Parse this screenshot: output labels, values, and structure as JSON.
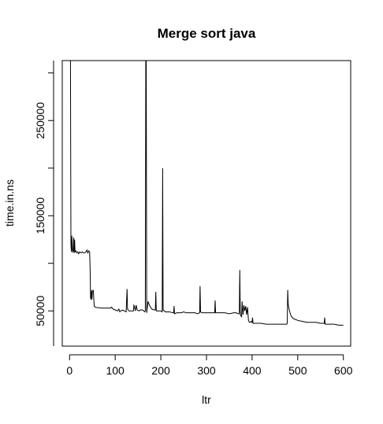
{
  "chart_data": {
    "type": "line",
    "title": "Merge sort java",
    "xlabel": "ltr",
    "ylabel": "time.in.ns",
    "xlim": [
      -16,
      616
    ],
    "ylim": [
      13000,
      313000
    ],
    "xticks": [
      0,
      100,
      200,
      300,
      400,
      500,
      600
    ],
    "yticks": [
      50000,
      150000,
      250000
    ],
    "ytick_labels": [
      "50000",
      "150000",
      "250000"
    ],
    "grid": false,
    "legend": "none",
    "series": [
      {
        "color": "#000000",
        "points": [
          [
            1,
            313000
          ],
          [
            2,
            313000
          ],
          [
            3,
            120000
          ],
          [
            4,
            112000
          ],
          [
            5,
            129000
          ],
          [
            6,
            115000
          ],
          [
            7,
            112000
          ],
          [
            8,
            113000
          ],
          [
            9,
            127000
          ],
          [
            10,
            111000
          ],
          [
            11,
            125000
          ],
          [
            12,
            112000
          ],
          [
            14,
            113000
          ],
          [
            16,
            111000
          ],
          [
            18,
            112000
          ],
          [
            20,
            110000
          ],
          [
            22,
            112000
          ],
          [
            25,
            111000
          ],
          [
            28,
            112000
          ],
          [
            30,
            111000
          ],
          [
            33,
            111000
          ],
          [
            36,
            112000
          ],
          [
            38,
            114000
          ],
          [
            40,
            111000
          ],
          [
            42,
            113000
          ],
          [
            44,
            112000
          ],
          [
            45,
            95000
          ],
          [
            46,
            64000
          ],
          [
            47,
            62000
          ],
          [
            48,
            72000
          ],
          [
            49,
            62000
          ],
          [
            50,
            70000
          ],
          [
            51,
            71000
          ],
          [
            52,
            72000
          ],
          [
            54,
            55000
          ],
          [
            56,
            54000
          ],
          [
            60,
            53500
          ],
          [
            70,
            53000
          ],
          [
            80,
            53000
          ],
          [
            90,
            53000
          ],
          [
            92,
            54000
          ],
          [
            95,
            52000
          ],
          [
            100,
            51000
          ],
          [
            105,
            50000
          ],
          [
            108,
            52000
          ],
          [
            110,
            49000
          ],
          [
            115,
            51000
          ],
          [
            120,
            50000
          ],
          [
            124,
            49000
          ],
          [
            126,
            73000
          ],
          [
            127,
            52000
          ],
          [
            130,
            50000
          ],
          [
            135,
            50000
          ],
          [
            140,
            50000
          ],
          [
            141,
            56000
          ],
          [
            142,
            55000
          ],
          [
            144,
            50000
          ],
          [
            146,
            56000
          ],
          [
            148,
            51000
          ],
          [
            152,
            50000
          ],
          [
            156,
            51000
          ],
          [
            160,
            51000
          ],
          [
            165,
            49000
          ],
          [
            166,
            50000
          ],
          [
            167,
            313000
          ],
          [
            168,
            313000
          ],
          [
            169,
            48000
          ],
          [
            172,
            60000
          ],
          [
            175,
            56000
          ],
          [
            180,
            52000
          ],
          [
            185,
            51000
          ],
          [
            188,
            51000
          ],
          [
            189,
            70000
          ],
          [
            190,
            50000
          ],
          [
            195,
            50000
          ],
          [
            200,
            50000
          ],
          [
            203,
            49000
          ],
          [
            204,
            200000
          ],
          [
            205,
            51000
          ],
          [
            210,
            49000
          ],
          [
            215,
            49000
          ],
          [
            220,
            49000
          ],
          [
            225,
            48000
          ],
          [
            228,
            48000
          ],
          [
            229,
            55000
          ],
          [
            230,
            47000
          ],
          [
            235,
            48000
          ],
          [
            240,
            48000
          ],
          [
            245,
            48000
          ],
          [
            250,
            49000
          ],
          [
            255,
            48000
          ],
          [
            260,
            48000
          ],
          [
            265,
            48000
          ],
          [
            270,
            48000
          ],
          [
            275,
            48000
          ],
          [
            280,
            47000
          ],
          [
            285,
            48000
          ],
          [
            286,
            76000
          ],
          [
            287,
            49000
          ],
          [
            290,
            48000
          ],
          [
            295,
            48000
          ],
          [
            300,
            48000
          ],
          [
            305,
            48000
          ],
          [
            310,
            48000
          ],
          [
            315,
            48000
          ],
          [
            318,
            48000
          ],
          [
            319,
            61000
          ],
          [
            320,
            48000
          ],
          [
            325,
            48000
          ],
          [
            330,
            48000
          ],
          [
            340,
            48000
          ],
          [
            350,
            47000
          ],
          [
            360,
            48000
          ],
          [
            365,
            48000
          ],
          [
            370,
            47000
          ],
          [
            372,
            47000
          ],
          [
            373,
            93000
          ],
          [
            374,
            50000
          ],
          [
            375,
            45000
          ],
          [
            377,
            44000
          ],
          [
            378,
            60000
          ],
          [
            380,
            46000
          ],
          [
            382,
            56000
          ],
          [
            384,
            50000
          ],
          [
            386,
            55000
          ],
          [
            388,
            46000
          ],
          [
            390,
            54000
          ],
          [
            392,
            40000
          ],
          [
            394,
            38000
          ],
          [
            396,
            38000
          ],
          [
            398,
            39000
          ],
          [
            400,
            38000
          ],
          [
            401,
            43000
          ],
          [
            402,
            37000
          ],
          [
            410,
            37000
          ],
          [
            420,
            37000
          ],
          [
            430,
            36000
          ],
          [
            440,
            36000
          ],
          [
            450,
            36000
          ],
          [
            460,
            36000
          ],
          [
            470,
            36000
          ],
          [
            476,
            36000
          ],
          [
            477,
            37000
          ],
          [
            478,
            72000
          ],
          [
            479,
            58000
          ],
          [
            480,
            54000
          ],
          [
            482,
            50000
          ],
          [
            485,
            45000
          ],
          [
            490,
            42000
          ],
          [
            495,
            41000
          ],
          [
            500,
            40000
          ],
          [
            510,
            39000
          ],
          [
            520,
            38000
          ],
          [
            530,
            38000
          ],
          [
            540,
            38000
          ],
          [
            550,
            37000
          ],
          [
            555,
            37000
          ],
          [
            558,
            37000
          ],
          [
            559,
            43000
          ],
          [
            560,
            36000
          ],
          [
            570,
            36000
          ],
          [
            580,
            36000
          ],
          [
            590,
            35000
          ],
          [
            600,
            35000
          ]
        ]
      }
    ]
  }
}
